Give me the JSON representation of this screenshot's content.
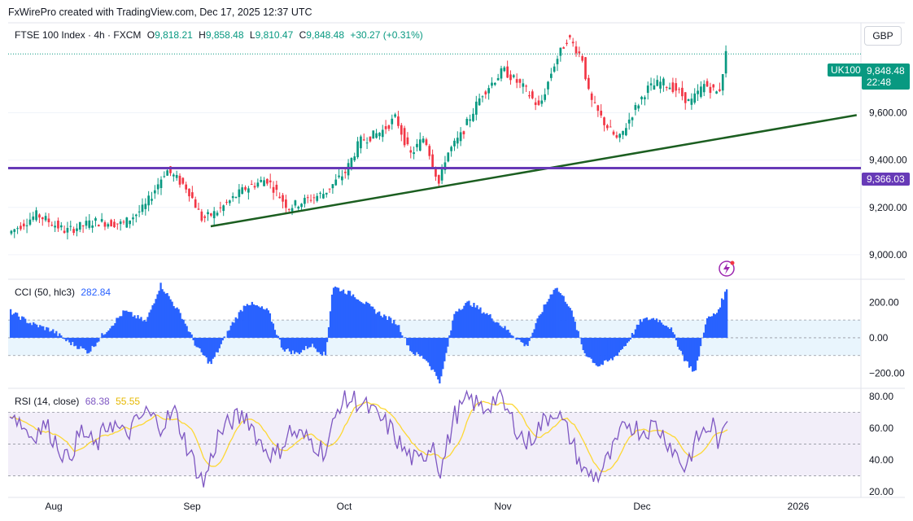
{
  "header": {
    "text": "FxWirePro created with TradingView.com, Dec 17, 2025 12:37 UTC"
  },
  "main": {
    "symbol": "FTSE 100 Index · 4h · FXCM",
    "open_label": "O",
    "open": "9,818.21",
    "high_label": "H",
    "high": "9,858.48",
    "low_label": "L",
    "low": "9,810.47",
    "close_label": "C",
    "close": "9,848.48",
    "change": "+30.27 (+0.31%)",
    "currency": "GBP",
    "symbol_tag": "UK100",
    "last_price": "9,848.48",
    "countdown": "22:48",
    "level_price": "9,366.03"
  },
  "cci_legend": {
    "name": "CCI (50, hlc3)",
    "value": "282.84"
  },
  "rsi_legend": {
    "name": "RSI (14, close)",
    "value": "68.38",
    "ma_value": "55.55"
  },
  "colors": {
    "up": "#089981",
    "down": "#f23645",
    "cci": "#2962ff",
    "rsi": "#7e57c2",
    "rsi_ma": "#fdd835",
    "support_line": "#1b5e20",
    "level_line": "#673ab7",
    "price_tag": "#089981",
    "lightning": "#9c27b0"
  },
  "chart_data": [
    {
      "type": "candlestick",
      "title": "FTSE 100 Index · 4h · FXCM",
      "ylim": [
        8900,
        9980
      ],
      "y_ticks": [
        "9,000.00",
        "9,200.00",
        "9,400.00",
        "9,600.00"
      ],
      "y_tick_values": [
        9000,
        9200,
        9400,
        9600
      ],
      "x_ticks": [
        "Aug",
        "Sep",
        "Oct",
        "Nov",
        "Dec",
        "2026"
      ],
      "price_path": [
        {
          "t": 0.0,
          "v": 9090
        },
        {
          "t": 0.04,
          "v": 9170
        },
        {
          "t": 0.08,
          "v": 9100
        },
        {
          "t": 0.12,
          "v": 9140
        },
        {
          "t": 0.16,
          "v": 9130
        },
        {
          "t": 0.19,
          "v": 9200
        },
        {
          "t": 0.22,
          "v": 9360
        },
        {
          "t": 0.25,
          "v": 9280
        },
        {
          "t": 0.27,
          "v": 9150
        },
        {
          "t": 0.29,
          "v": 9180
        },
        {
          "t": 0.33,
          "v": 9280
        },
        {
          "t": 0.36,
          "v": 9320
        },
        {
          "t": 0.39,
          "v": 9200
        },
        {
          "t": 0.44,
          "v": 9260
        },
        {
          "t": 0.47,
          "v": 9350
        },
        {
          "t": 0.49,
          "v": 9480
        },
        {
          "t": 0.52,
          "v": 9520
        },
        {
          "t": 0.54,
          "v": 9580
        },
        {
          "t": 0.56,
          "v": 9420
        },
        {
          "t": 0.58,
          "v": 9500
        },
        {
          "t": 0.6,
          "v": 9300
        },
        {
          "t": 0.61,
          "v": 9420
        },
        {
          "t": 0.63,
          "v": 9500
        },
        {
          "t": 0.66,
          "v": 9680
        },
        {
          "t": 0.69,
          "v": 9780
        },
        {
          "t": 0.72,
          "v": 9700
        },
        {
          "t": 0.74,
          "v": 9620
        },
        {
          "t": 0.76,
          "v": 9800
        },
        {
          "t": 0.78,
          "v": 9920
        },
        {
          "t": 0.8,
          "v": 9830
        },
        {
          "t": 0.81,
          "v": 9660
        },
        {
          "t": 0.83,
          "v": 9560
        },
        {
          "t": 0.85,
          "v": 9480
        },
        {
          "t": 0.87,
          "v": 9600
        },
        {
          "t": 0.89,
          "v": 9700
        },
        {
          "t": 0.91,
          "v": 9730
        },
        {
          "t": 0.93,
          "v": 9700
        },
        {
          "t": 0.95,
          "v": 9640
        },
        {
          "t": 0.97,
          "v": 9720
        },
        {
          "t": 0.99,
          "v": 9680
        },
        {
          "t": 1.0,
          "v": 9848
        }
      ],
      "support_line": {
        "from": {
          "t": 0.28,
          "v": 9120
        },
        "to": {
          "t": 1.18,
          "v": 9590
        }
      },
      "horizontal_level": 9366.03,
      "last_price_value": 9848.48
    },
    {
      "type": "histogram",
      "title": "CCI (50, hlc3)",
      "ylim": [
        -280,
        330
      ],
      "y_ticks": [
        "200.00",
        "0.00",
        "−200.00"
      ],
      "y_tick_values": [
        200,
        0,
        -200
      ],
      "band": [
        -100,
        100
      ],
      "cci_path": [
        {
          "t": 0.0,
          "v": 150
        },
        {
          "t": 0.03,
          "v": 80
        },
        {
          "t": 0.06,
          "v": 40
        },
        {
          "t": 0.08,
          "v": -20
        },
        {
          "t": 0.11,
          "v": -80
        },
        {
          "t": 0.13,
          "v": 20
        },
        {
          "t": 0.16,
          "v": 150
        },
        {
          "t": 0.19,
          "v": 90
        },
        {
          "t": 0.21,
          "v": 300
        },
        {
          "t": 0.24,
          "v": 120
        },
        {
          "t": 0.26,
          "v": -50
        },
        {
          "t": 0.28,
          "v": -150
        },
        {
          "t": 0.31,
          "v": 80
        },
        {
          "t": 0.33,
          "v": 200
        },
        {
          "t": 0.36,
          "v": 150
        },
        {
          "t": 0.38,
          "v": -60
        },
        {
          "t": 0.4,
          "v": -90
        },
        {
          "t": 0.42,
          "v": -40
        },
        {
          "t": 0.44,
          "v": -100
        },
        {
          "t": 0.45,
          "v": 290
        },
        {
          "t": 0.48,
          "v": 240
        },
        {
          "t": 0.51,
          "v": 150
        },
        {
          "t": 0.54,
          "v": 80
        },
        {
          "t": 0.56,
          "v": -80
        },
        {
          "t": 0.58,
          "v": -120
        },
        {
          "t": 0.6,
          "v": -250
        },
        {
          "t": 0.62,
          "v": 150
        },
        {
          "t": 0.64,
          "v": 200
        },
        {
          "t": 0.67,
          "v": 120
        },
        {
          "t": 0.7,
          "v": 20
        },
        {
          "t": 0.72,
          "v": -50
        },
        {
          "t": 0.74,
          "v": 140
        },
        {
          "t": 0.76,
          "v": 290
        },
        {
          "t": 0.78,
          "v": 180
        },
        {
          "t": 0.8,
          "v": -80
        },
        {
          "t": 0.82,
          "v": -160
        },
        {
          "t": 0.84,
          "v": -120
        },
        {
          "t": 0.86,
          "v": -30
        },
        {
          "t": 0.88,
          "v": 100
        },
        {
          "t": 0.9,
          "v": 110
        },
        {
          "t": 0.92,
          "v": 60
        },
        {
          "t": 0.94,
          "v": -120
        },
        {
          "t": 0.955,
          "v": -200
        },
        {
          "t": 0.97,
          "v": 100
        },
        {
          "t": 0.985,
          "v": 140
        },
        {
          "t": 1.0,
          "v": 283
        }
      ]
    },
    {
      "type": "line",
      "title": "RSI (14, close)",
      "ylim": [
        17,
        85
      ],
      "y_ticks": [
        "80.00",
        "60.00",
        "40.00",
        "20.00"
      ],
      "y_tick_values": [
        80,
        60,
        40,
        20
      ],
      "band": [
        30,
        70
      ],
      "rsi_path": [
        {
          "t": 0.0,
          "v": 72
        },
        {
          "t": 0.03,
          "v": 55
        },
        {
          "t": 0.05,
          "v": 62
        },
        {
          "t": 0.08,
          "v": 40
        },
        {
          "t": 0.1,
          "v": 58
        },
        {
          "t": 0.12,
          "v": 48
        },
        {
          "t": 0.14,
          "v": 65
        },
        {
          "t": 0.16,
          "v": 55
        },
        {
          "t": 0.19,
          "v": 70
        },
        {
          "t": 0.21,
          "v": 62
        },
        {
          "t": 0.23,
          "v": 70
        },
        {
          "t": 0.25,
          "v": 45
        },
        {
          "t": 0.27,
          "v": 25
        },
        {
          "t": 0.29,
          "v": 55
        },
        {
          "t": 0.31,
          "v": 65
        },
        {
          "t": 0.33,
          "v": 68
        },
        {
          "t": 0.35,
          "v": 50
        },
        {
          "t": 0.37,
          "v": 42
        },
        {
          "t": 0.39,
          "v": 58
        },
        {
          "t": 0.42,
          "v": 52
        },
        {
          "t": 0.44,
          "v": 45
        },
        {
          "t": 0.46,
          "v": 76
        },
        {
          "t": 0.48,
          "v": 78
        },
        {
          "t": 0.5,
          "v": 72
        },
        {
          "t": 0.53,
          "v": 60
        },
        {
          "t": 0.55,
          "v": 45
        },
        {
          "t": 0.57,
          "v": 38
        },
        {
          "t": 0.59,
          "v": 52
        },
        {
          "t": 0.6,
          "v": 32
        },
        {
          "t": 0.62,
          "v": 68
        },
        {
          "t": 0.64,
          "v": 78
        },
        {
          "t": 0.66,
          "v": 72
        },
        {
          "t": 0.68,
          "v": 80
        },
        {
          "t": 0.7,
          "v": 65
        },
        {
          "t": 0.72,
          "v": 50
        },
        {
          "t": 0.74,
          "v": 62
        },
        {
          "t": 0.76,
          "v": 72
        },
        {
          "t": 0.78,
          "v": 55
        },
        {
          "t": 0.8,
          "v": 32
        },
        {
          "t": 0.82,
          "v": 30
        },
        {
          "t": 0.84,
          "v": 45
        },
        {
          "t": 0.86,
          "v": 64
        },
        {
          "t": 0.88,
          "v": 58
        },
        {
          "t": 0.9,
          "v": 62
        },
        {
          "t": 0.92,
          "v": 50
        },
        {
          "t": 0.94,
          "v": 35
        },
        {
          "t": 0.96,
          "v": 55
        },
        {
          "t": 0.98,
          "v": 62
        },
        {
          "t": 0.99,
          "v": 48
        },
        {
          "t": 1.0,
          "v": 68
        }
      ]
    }
  ]
}
